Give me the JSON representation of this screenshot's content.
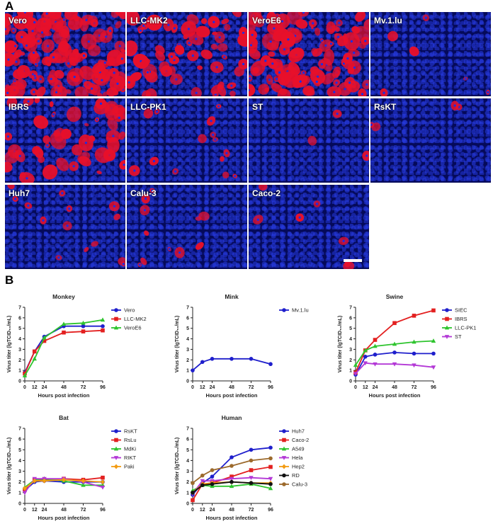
{
  "panels": {
    "a": "A",
    "b": "B"
  },
  "micrographs": [
    {
      "label": "Vero",
      "density": 1.0
    },
    {
      "label": "LLC-MK2",
      "density": 0.45
    },
    {
      "label": "VeroE6",
      "density": 0.75
    },
    {
      "label": "Mv.1.lu",
      "density": 0.04
    },
    {
      "label": "IBRS",
      "density": 0.35
    },
    {
      "label": "LLC-PK1",
      "density": 0.1
    },
    {
      "label": "ST",
      "density": 0.02
    },
    {
      "label": "RsKT",
      "density": 0.03
    },
    {
      "label": "Huh7",
      "density": 0.1
    },
    {
      "label": "Calu-3",
      "density": 0.08
    },
    {
      "label": "Caco-2",
      "density": 0.05
    }
  ],
  "colors": {
    "nuclei": "#1a2ee6",
    "stain": "#e8102a",
    "background": "#050a5a"
  },
  "chart_data": [
    {
      "type": "line",
      "title": "Monkey",
      "xlabel": "Hours post infection",
      "ylabel": "Virus titer (lgTCID₅₀/mL)",
      "x": [
        0,
        12,
        24,
        48,
        72,
        96
      ],
      "ylim": [
        0,
        7
      ],
      "legend_position": "right",
      "series": [
        {
          "name": "Vero",
          "color": "#1f1fcc",
          "marker": "circle",
          "values": [
            0.8,
            2.8,
            4.2,
            5.2,
            5.2,
            5.2
          ]
        },
        {
          "name": "LLC-MK2",
          "color": "#e32020",
          "marker": "square",
          "values": [
            0.7,
            2.8,
            3.8,
            4.6,
            4.7,
            4.8
          ]
        },
        {
          "name": "VeroE6",
          "color": "#2ec42e",
          "marker": "triangle",
          "values": [
            0.5,
            2.1,
            4.1,
            5.4,
            5.5,
            5.8
          ]
        }
      ]
    },
    {
      "type": "line",
      "title": "Mink",
      "xlabel": "Hours post infection",
      "ylabel": "Virus titer (lgTCID₅₀/mL)",
      "x": [
        0,
        12,
        24,
        48,
        72,
        96
      ],
      "ylim": [
        0,
        7
      ],
      "legend_position": "right",
      "series": [
        {
          "name": "Mv.1.lu",
          "color": "#1f1fcc",
          "marker": "circle",
          "values": [
            1.0,
            1.8,
            2.1,
            2.1,
            2.1,
            1.6
          ]
        }
      ]
    },
    {
      "type": "line",
      "title": "Swine",
      "xlabel": "Hours post infection",
      "ylabel": "Virus titer (lgTCID₅₀/mL)",
      "x": [
        0,
        12,
        24,
        48,
        72,
        96
      ],
      "ylim": [
        0,
        7
      ],
      "legend_position": "right",
      "series": [
        {
          "name": "SIEC",
          "color": "#1f1fcc",
          "marker": "circle",
          "values": [
            0.6,
            2.3,
            2.5,
            2.7,
            2.6,
            2.6
          ]
        },
        {
          "name": "IBRS",
          "color": "#e32020",
          "marker": "square",
          "values": [
            0.8,
            2.9,
            3.9,
            5.5,
            6.2,
            6.7
          ]
        },
        {
          "name": "LLC-PK1",
          "color": "#2ec42e",
          "marker": "triangle",
          "values": [
            1.5,
            2.9,
            3.3,
            3.5,
            3.7,
            3.8
          ]
        },
        {
          "name": "ST",
          "color": "#b338d6",
          "marker": "triangle-down",
          "values": [
            0.7,
            1.7,
            1.6,
            1.6,
            1.5,
            1.3
          ]
        }
      ]
    },
    {
      "type": "line",
      "title": "Bat",
      "xlabel": "Hours post infection",
      "ylabel": "Virus titer (lgTCID₅₀/mL)",
      "x": [
        0,
        12,
        24,
        48,
        72,
        96
      ],
      "ylim": [
        0,
        7
      ],
      "legend_position": "right",
      "series": [
        {
          "name": "RsKT",
          "color": "#1f1fcc",
          "marker": "circle",
          "values": [
            1.2,
            2.0,
            2.1,
            2.0,
            2.0,
            2.0
          ]
        },
        {
          "name": "RsLu",
          "color": "#e32020",
          "marker": "square",
          "values": [
            1.3,
            2.2,
            2.2,
            2.3,
            2.2,
            2.4
          ]
        },
        {
          "name": "MdKi",
          "color": "#2ec42e",
          "marker": "triangle",
          "values": [
            1.5,
            2.2,
            2.3,
            2.1,
            1.7,
            1.7
          ]
        },
        {
          "name": "RIKT",
          "color": "#b338d6",
          "marker": "triangle-down",
          "values": [
            1.0,
            2.3,
            2.3,
            2.3,
            2.0,
            1.5
          ]
        },
        {
          "name": "Paki",
          "color": "#f39c12",
          "marker": "diamond",
          "values": [
            1.4,
            2.1,
            2.1,
            2.2,
            2.1,
            2.0
          ]
        }
      ]
    },
    {
      "type": "line",
      "title": "Human",
      "xlabel": "Hours post infection",
      "ylabel": "Virus titer (lgTCID₅₀/mL)",
      "x": [
        0,
        12,
        24,
        48,
        72,
        96
      ],
      "ylim": [
        0,
        7
      ],
      "legend_position": "right",
      "series": [
        {
          "name": "Huh7",
          "color": "#1f1fcc",
          "marker": "circle",
          "values": [
            0.8,
            1.9,
            2.5,
            4.3,
            5.0,
            5.2
          ]
        },
        {
          "name": "Caco-2",
          "color": "#e32020",
          "marker": "square",
          "values": [
            0.3,
            1.8,
            1.9,
            2.5,
            3.1,
            3.4
          ]
        },
        {
          "name": "A549",
          "color": "#2ec42e",
          "marker": "triangle",
          "values": [
            1.2,
            1.7,
            1.6,
            1.6,
            1.8,
            1.4
          ]
        },
        {
          "name": "Hela",
          "color": "#b338d6",
          "marker": "triangle-down",
          "values": [
            0.9,
            2.1,
            2.1,
            2.3,
            2.4,
            2.3
          ]
        },
        {
          "name": "Hep2",
          "color": "#f39c12",
          "marker": "diamond",
          "values": [
            1.0,
            1.8,
            1.9,
            2.0,
            1.9,
            1.9
          ]
        },
        {
          "name": "RD",
          "color": "#111111",
          "marker": "circle",
          "values": [
            1.0,
            1.7,
            1.8,
            2.0,
            1.9,
            1.8
          ]
        },
        {
          "name": "Calu-3",
          "color": "#9c6a2c",
          "marker": "circle",
          "values": [
            1.9,
            2.6,
            3.1,
            3.5,
            4.0,
            4.2
          ]
        }
      ]
    }
  ]
}
